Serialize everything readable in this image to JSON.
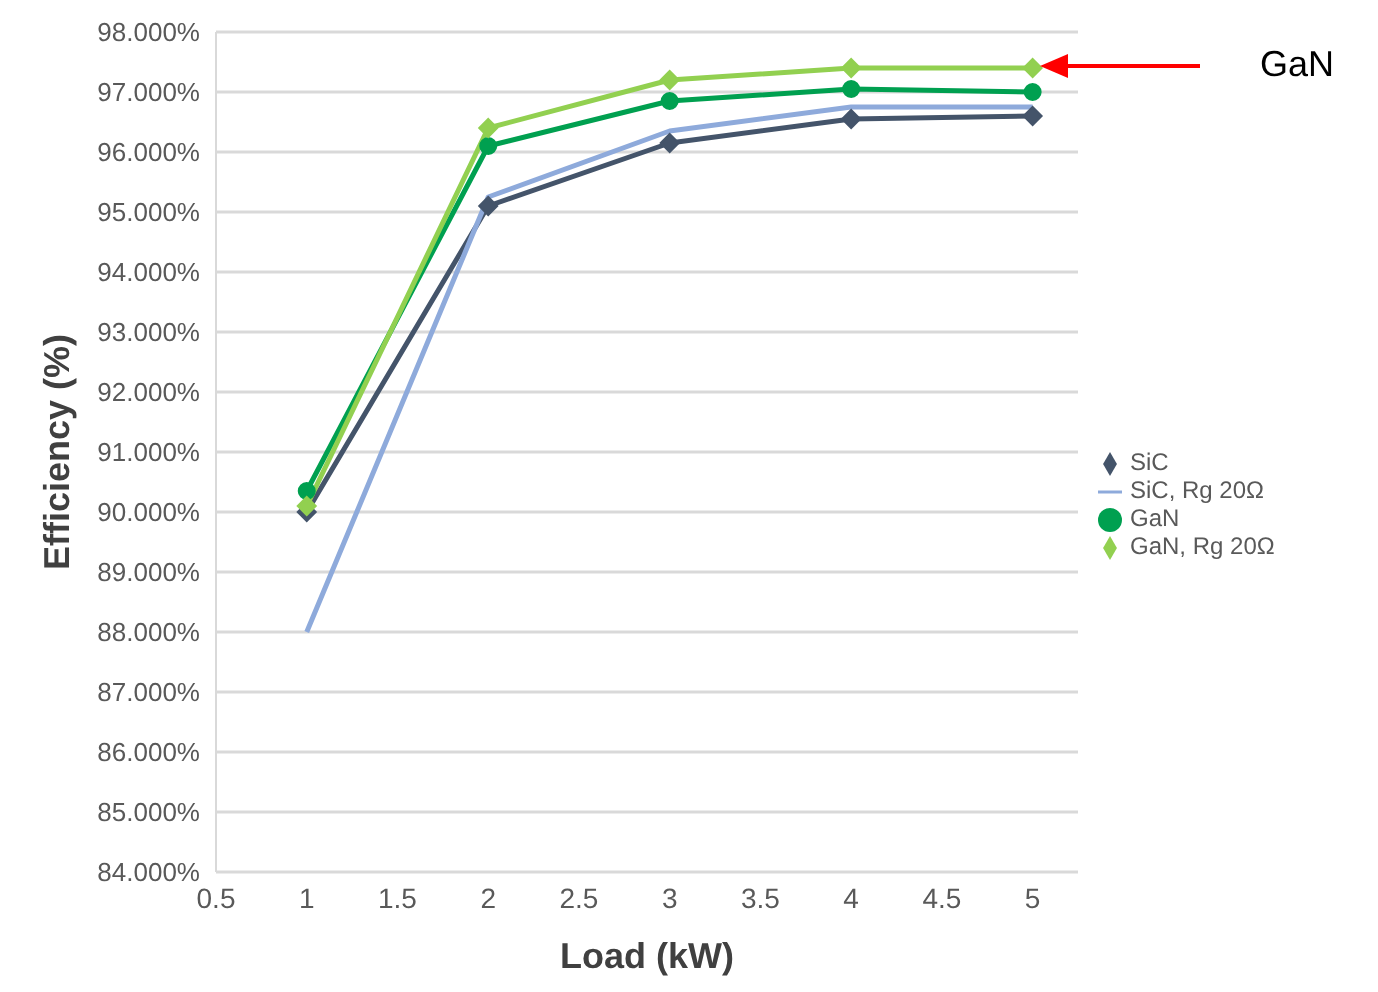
{
  "chart_data": {
    "type": "line",
    "xlabel": "Load (kW)",
    "ylabel": "Efficiency (%)",
    "x": [
      1,
      2,
      3,
      4,
      5
    ],
    "series": [
      {
        "name": "SiC",
        "color": "#44546a",
        "marker": "diamond",
        "values": [
          90.0,
          95.1,
          96.15,
          96.55,
          96.6
        ]
      },
      {
        "name": "SiC, Rg 20Ω",
        "color": "#8eaadb",
        "marker": "none",
        "values": [
          88.0,
          95.25,
          96.35,
          96.75,
          96.75
        ]
      },
      {
        "name": "GaN",
        "color": "#00a050",
        "marker": "circle",
        "values": [
          90.35,
          96.1,
          96.85,
          97.05,
          97.0
        ]
      },
      {
        "name": "GaN, Rg 20Ω",
        "color": "#92d050",
        "marker": "diamond",
        "values": [
          90.1,
          96.4,
          97.2,
          97.4,
          97.4
        ]
      }
    ],
    "xlim": [
      0.5,
      5.25
    ],
    "xticks": [
      0.5,
      1,
      1.5,
      2,
      2.5,
      3,
      3.5,
      4,
      4.5,
      5
    ],
    "ylim": [
      84,
      98
    ],
    "yticks": [
      {
        "value": 84,
        "label": "84.000%"
      },
      {
        "value": 85,
        "label": "85.000%"
      },
      {
        "value": 86,
        "label": "86.000%"
      },
      {
        "value": 87,
        "label": "87.000%"
      },
      {
        "value": 88,
        "label": "88.000%"
      },
      {
        "value": 89,
        "label": "89.000%"
      },
      {
        "value": 90,
        "label": "90.000%"
      },
      {
        "value": 91,
        "label": "91.000%"
      },
      {
        "value": 92,
        "label": "92.000%"
      },
      {
        "value": 93,
        "label": "93.000%"
      },
      {
        "value": 94,
        "label": "94.000%"
      },
      {
        "value": 95,
        "label": "95.000%"
      },
      {
        "value": 96,
        "label": "96.000%"
      },
      {
        "value": 97,
        "label": "97.000%"
      },
      {
        "value": 98,
        "label": "98.000%"
      }
    ],
    "grid": "y",
    "legend": "right",
    "line_style": "solid",
    "annotations": [
      "GaN"
    ]
  }
}
